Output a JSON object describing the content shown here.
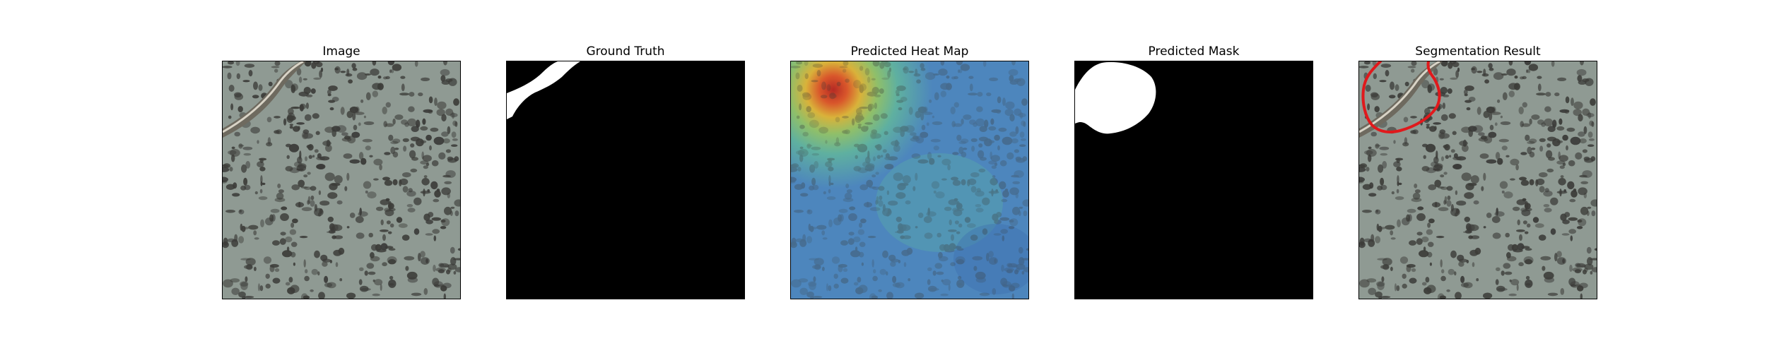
{
  "figure": {
    "panels": [
      {
        "id": "image",
        "title": "Image",
        "content": "granite-texture-with-crack"
      },
      {
        "id": "ground-truth",
        "title": "Ground Truth",
        "content": "binary-mask"
      },
      {
        "id": "heat-map",
        "title": "Predicted Heat Map",
        "content": "jet-colormap-overlay"
      },
      {
        "id": "predicted-mask",
        "title": "Predicted Mask",
        "content": "binary-mask"
      },
      {
        "id": "segmentation",
        "title": "Segmentation Result",
        "content": "texture-with-contour"
      }
    ],
    "colors": {
      "texture_base": "#8f9a93",
      "texture_spot": "#3b3b38",
      "mask_bg": "#000000",
      "mask_fg": "#ffffff",
      "contour": "#e0191c",
      "heat_low": "#3f6fae",
      "heat_high": "#c8332a"
    }
  }
}
